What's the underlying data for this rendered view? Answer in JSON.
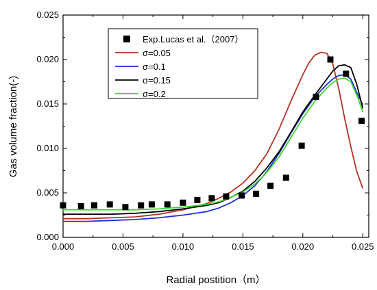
{
  "chart_data": {
    "type": "line",
    "xlabel": "Radial postition（m）",
    "ylabel": "Gas volume fraction(-)",
    "xlim": [
      0.0,
      0.0255
    ],
    "ylim": [
      0.0,
      0.025
    ],
    "x_ticks": [
      "0.000",
      "0.005",
      "0.010",
      "0.015",
      "0.020",
      "0.025"
    ],
    "y_ticks": [
      "0.000",
      "0.005",
      "0.010",
      "0.015",
      "0.020",
      "0.025"
    ],
    "legend_placement": "top-center",
    "grid": false,
    "series": [
      {
        "name": "Exp.Lucas et al.（2007）",
        "kind": "scatter",
        "marker": "filled-square",
        "color": "#000000",
        "x": [
          0.0,
          0.0015,
          0.0026,
          0.0039,
          0.0052,
          0.0065,
          0.0074,
          0.0087,
          0.01,
          0.0112,
          0.0124,
          0.0136,
          0.0149,
          0.0161,
          0.0173,
          0.0186,
          0.0199,
          0.0211,
          0.0223,
          0.0236,
          0.0249
        ],
        "y": [
          0.0036,
          0.0035,
          0.0036,
          0.0037,
          0.0034,
          0.0036,
          0.0037,
          0.0037,
          0.0039,
          0.0042,
          0.0044,
          0.0046,
          0.0047,
          0.0049,
          0.0058,
          0.0067,
          0.0103,
          0.0158,
          0.02,
          0.0184,
          0.0131
        ]
      },
      {
        "name": "σ=0.05",
        "kind": "line",
        "color": "#b5301e",
        "x": [
          0.0,
          0.002,
          0.004,
          0.006,
          0.008,
          0.01,
          0.012,
          0.013,
          0.014,
          0.015,
          0.016,
          0.017,
          0.018,
          0.019,
          0.02,
          0.0205,
          0.021,
          0.0215,
          0.022,
          0.0225,
          0.023,
          0.0235,
          0.024,
          0.0245,
          0.025
        ],
        "y": [
          0.0021,
          0.0021,
          0.0022,
          0.0023,
          0.0026,
          0.0031,
          0.0038,
          0.0044,
          0.0051,
          0.0061,
          0.0075,
          0.0094,
          0.0121,
          0.0153,
          0.0183,
          0.0196,
          0.0205,
          0.0208,
          0.0207,
          0.0195,
          0.0167,
          0.0133,
          0.0102,
          0.0074,
          0.0055
        ]
      },
      {
        "name": "σ=0.1",
        "kind": "line",
        "color": "#1f2ed6",
        "x": [
          0.0,
          0.002,
          0.004,
          0.006,
          0.008,
          0.01,
          0.012,
          0.013,
          0.014,
          0.015,
          0.016,
          0.017,
          0.018,
          0.019,
          0.02,
          0.021,
          0.022,
          0.0225,
          0.023,
          0.0235,
          0.024,
          0.0245,
          0.025
        ],
        "y": [
          0.0018,
          0.0018,
          0.0019,
          0.002,
          0.0022,
          0.0025,
          0.0029,
          0.0033,
          0.0039,
          0.0047,
          0.0058,
          0.0074,
          0.0094,
          0.0117,
          0.0139,
          0.0158,
          0.0172,
          0.0178,
          0.0182,
          0.0183,
          0.0178,
          0.0163,
          0.0149
        ]
      },
      {
        "name": "σ=0.15",
        "kind": "line",
        "color": "#000000",
        "x": [
          0.0,
          0.002,
          0.004,
          0.006,
          0.008,
          0.01,
          0.012,
          0.013,
          0.014,
          0.015,
          0.016,
          0.017,
          0.018,
          0.019,
          0.02,
          0.021,
          0.022,
          0.0225,
          0.023,
          0.0235,
          0.024,
          0.0245,
          0.025
        ],
        "y": [
          0.0026,
          0.0026,
          0.0026,
          0.0027,
          0.0029,
          0.0032,
          0.0036,
          0.0039,
          0.0045,
          0.0052,
          0.0063,
          0.0078,
          0.0096,
          0.0118,
          0.0141,
          0.016,
          0.0178,
          0.0187,
          0.0193,
          0.0194,
          0.0191,
          0.0172,
          0.0145
        ]
      },
      {
        "name": "σ=0.2",
        "kind": "line",
        "color": "#3fd82b",
        "x": [
          0.0,
          0.002,
          0.004,
          0.006,
          0.008,
          0.01,
          0.012,
          0.013,
          0.014,
          0.015,
          0.016,
          0.017,
          0.018,
          0.019,
          0.02,
          0.021,
          0.022,
          0.0225,
          0.023,
          0.0235,
          0.024,
          0.0245,
          0.025
        ],
        "y": [
          0.0031,
          0.0031,
          0.0031,
          0.0031,
          0.0032,
          0.0034,
          0.0037,
          0.004,
          0.0045,
          0.0051,
          0.006,
          0.0073,
          0.009,
          0.0112,
          0.0134,
          0.0153,
          0.0168,
          0.0174,
          0.0178,
          0.0179,
          0.0175,
          0.016,
          0.0141
        ]
      }
    ]
  }
}
